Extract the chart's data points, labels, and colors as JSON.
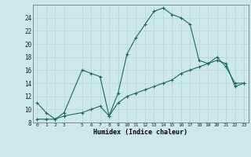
{
  "xlabel": "Humidex (Indice chaleur)",
  "line1_x": [
    0,
    1,
    2,
    3,
    5,
    6,
    7,
    8,
    9,
    10,
    11,
    12,
    13,
    14,
    15,
    16,
    17,
    18,
    19,
    20,
    21,
    22,
    23
  ],
  "line1_y": [
    11,
    9.5,
    8.5,
    9.5,
    16,
    15.5,
    15,
    9,
    12.5,
    18.5,
    21,
    23,
    25,
    25.5,
    24.5,
    24,
    23,
    17.5,
    17,
    18,
    16.5,
    14,
    14
  ],
  "line2_x": [
    0,
    1,
    2,
    3,
    5,
    6,
    7,
    8,
    9,
    10,
    11,
    12,
    13,
    14,
    15,
    16,
    17,
    18,
    19,
    20,
    21,
    22,
    23
  ],
  "line2_y": [
    8.5,
    8.5,
    8.5,
    9,
    9.5,
    10,
    10.5,
    9,
    11,
    12,
    12.5,
    13,
    13.5,
    14,
    14.5,
    15.5,
    16,
    16.5,
    17,
    17.5,
    17,
    13.5,
    14
  ],
  "ylim": [
    8,
    26
  ],
  "xlim": [
    -0.5,
    23.5
  ],
  "line_color": "#1a6b5a",
  "bg_color": "#cde8e8",
  "grid_color": "#b5d5d5",
  "yticks": [
    8,
    10,
    12,
    14,
    16,
    18,
    20,
    22,
    24
  ],
  "x_ticks": [
    0,
    1,
    2,
    3,
    5,
    6,
    7,
    8,
    9,
    10,
    11,
    12,
    13,
    14,
    15,
    16,
    17,
    18,
    19,
    20,
    21,
    22,
    23
  ]
}
